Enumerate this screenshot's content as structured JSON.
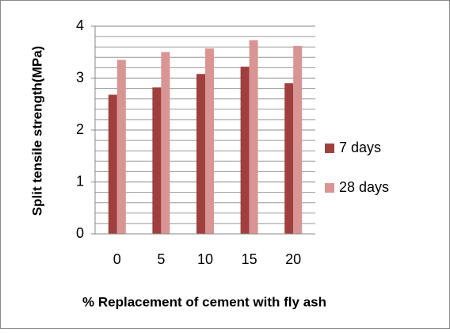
{
  "chart_data": {
    "type": "bar",
    "xlabel": "% Replacement of cement with fly ash",
    "ylabel": "Split tensile strength(MPa)",
    "categories": [
      "0",
      "5",
      "10",
      "15",
      "20"
    ],
    "series": [
      {
        "name": "7 days",
        "color": "#a0403e",
        "values": [
          2.68,
          2.82,
          3.08,
          3.22,
          2.9
        ]
      },
      {
        "name": "28 days",
        "color": "#d99593",
        "values": [
          3.35,
          3.5,
          3.57,
          3.73,
          3.62
        ]
      }
    ],
    "ylim": [
      0,
      4
    ],
    "yticks": [
      0,
      1,
      2,
      3,
      4
    ],
    "yminorticks": [
      0.2,
      0.4,
      0.6,
      0.8,
      1.2,
      1.4,
      1.6,
      1.8,
      2.2,
      2.4,
      2.6,
      2.8,
      3.2,
      3.4,
      3.6,
      3.8
    ],
    "grid": true,
    "legend": "right"
  }
}
